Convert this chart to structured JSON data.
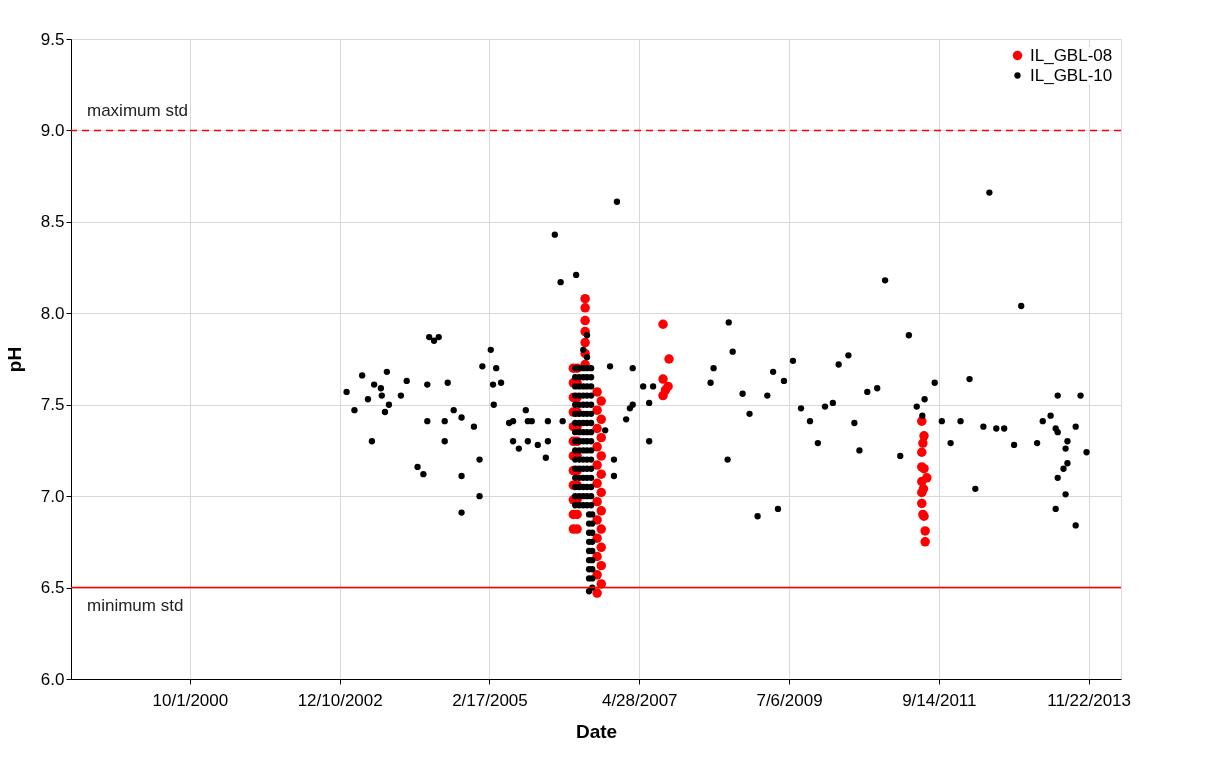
{
  "chart_data": {
    "type": "scatter",
    "xlabel": "Date",
    "ylabel": "pH",
    "xlim": [
      "1999-01-05",
      "2014-05-14"
    ],
    "xticks": [
      {
        "value": "2000-10-01",
        "label": "10/1/2000"
      },
      {
        "value": "2002-12-10",
        "label": "12/10/2002"
      },
      {
        "value": "2005-02-17",
        "label": "2/17/2005"
      },
      {
        "value": "2007-04-28",
        "label": "4/28/2007"
      },
      {
        "value": "2009-07-06",
        "label": "7/6/2009"
      },
      {
        "value": "2011-09-14",
        "label": "9/14/2011"
      },
      {
        "value": "2013-11-22",
        "label": "11/22/2013"
      }
    ],
    "ylim": [
      6,
      9.5
    ],
    "yticks": [
      {
        "value": 6,
        "label": "6.0"
      },
      6.5,
      {
        "value": 7,
        "label": "7.0"
      },
      7.5,
      {
        "value": 8,
        "label": "8.0"
      },
      8.5,
      {
        "value": 9,
        "label": "9.0"
      },
      9.5
    ],
    "grid": true,
    "legend": "top right",
    "marker": "circle",
    "ref_lines": [
      {
        "axis": "y",
        "value": 9.0,
        "label": "maximum std",
        "color": "#ff0000",
        "line_style": "dashed"
      },
      {
        "axis": "y",
        "value": 6.5,
        "label": "minimum std",
        "color": "#ff0000",
        "line_style": "solid"
      }
    ],
    "series": [
      {
        "name": "IL_GBL-08",
        "color": "#ff0000",
        "x": [
          "2006-05-11",
          "2006-05-11",
          "2006-05-11",
          "2006-05-11",
          "2006-05-11",
          "2006-05-11",
          "2006-05-11",
          "2006-05-11",
          "2006-05-11",
          "2006-05-11",
          "2006-05-11",
          "2006-05-11",
          "2006-05-31",
          "2006-05-31",
          "2006-05-31",
          "2006-05-31",
          "2006-05-31",
          "2006-05-31",
          "2006-05-31",
          "2006-05-31",
          "2006-05-31",
          "2006-05-31",
          "2006-05-31",
          "2006-05-31",
          "2006-07-13",
          "2006-07-13",
          "2006-07-13",
          "2006-07-13",
          "2006-07-13",
          "2006-07-13",
          "2006-07-13",
          "2006-09-15",
          "2006-09-15",
          "2006-09-15",
          "2006-09-15",
          "2006-09-15",
          "2006-09-15",
          "2006-09-15",
          "2006-09-15",
          "2006-09-15",
          "2006-09-15",
          "2006-09-15",
          "2006-09-15",
          "2006-10-07",
          "2006-10-07",
          "2006-10-07",
          "2006-10-07",
          "2006-10-07",
          "2006-10-07",
          "2006-10-07",
          "2006-10-07",
          "2006-10-07",
          "2006-10-07",
          "2006-10-07",
          "2007-09-02",
          "2007-10-04",
          "2007-09-02",
          "2007-09-29",
          "2007-09-02",
          "2007-09-15",
          "2011-06-15",
          "2011-06-27",
          "2011-06-21",
          "2011-06-15",
          "2011-06-15",
          "2011-06-27",
          "2011-07-12",
          "2011-06-15",
          "2011-06-24",
          "2011-06-15",
          "2011-06-15",
          "2011-06-21",
          "2011-06-27",
          "2011-07-03",
          "2011-07-03"
        ],
        "values": [
          6.82,
          6.9,
          6.98,
          7.06,
          7.14,
          7.22,
          7.3,
          7.38,
          7.46,
          7.54,
          7.62,
          7.7,
          6.82,
          6.9,
          6.98,
          7.06,
          7.14,
          7.22,
          7.3,
          7.38,
          7.46,
          7.54,
          7.62,
          7.7,
          7.72,
          7.78,
          7.84,
          7.9,
          7.96,
          8.03,
          8.08,
          6.47,
          6.57,
          6.67,
          6.77,
          6.87,
          6.97,
          7.07,
          7.17,
          7.27,
          7.37,
          7.47,
          7.57,
          6.52,
          6.62,
          6.72,
          6.82,
          6.92,
          7.02,
          7.12,
          7.22,
          7.32,
          7.42,
          7.52,
          7.94,
          7.75,
          7.64,
          7.6,
          7.55,
          7.58,
          7.41,
          7.33,
          7.29,
          7.24,
          7.16,
          7.15,
          7.1,
          7.08,
          7.04,
          7.02,
          6.96,
          6.9,
          6.89,
          6.81,
          6.75
        ]
      },
      {
        "name": "IL_GBL-10",
        "color": "#000000",
        "x": [
          "2003-01-16",
          "2003-02-27",
          "2003-04-09",
          "2003-05-10",
          "2003-05-31",
          "2003-06-12",
          "2003-07-18",
          "2003-07-23",
          "2003-08-09",
          "2003-08-19",
          "2003-08-30",
          "2003-11-02",
          "2003-12-03",
          "2004-01-30",
          "2004-03-01",
          "2004-03-22",
          "2004-03-22",
          "2004-04-01",
          "2004-04-27",
          "2004-05-22",
          "2004-06-23",
          "2004-06-23",
          "2004-07-09",
          "2004-08-10",
          "2004-09-21",
          "2004-09-21",
          "2004-09-21",
          "2004-11-26",
          "2004-12-26",
          "2004-12-26",
          "2005-01-10",
          "2005-02-24",
          "2005-03-08",
          "2005-03-12",
          "2005-03-25",
          "2005-04-20",
          "2005-06-02",
          "2005-06-23",
          "2005-06-23",
          "2005-07-24",
          "2005-08-30",
          "2005-09-10",
          "2005-09-10",
          "2005-10-01",
          "2005-11-02",
          "2005-12-15",
          "2005-12-26",
          "2005-12-26",
          "2006-02-01",
          "2006-03-04",
          "2006-03-15",
          "2006-05-26",
          "2006-05-21",
          "2006-05-21",
          "2006-05-21",
          "2006-05-21",
          "2006-05-21",
          "2006-05-21",
          "2006-05-21",
          "2006-05-21",
          "2006-05-21",
          "2006-05-21",
          "2006-05-21",
          "2006-05-21",
          "2006-05-21",
          "2006-05-21",
          "2006-05-21",
          "2006-05-21",
          "2006-06-12",
          "2006-06-12",
          "2006-06-12",
          "2006-06-12",
          "2006-06-12",
          "2006-06-12",
          "2006-06-12",
          "2006-06-12",
          "2006-06-12",
          "2006-06-12",
          "2006-06-12",
          "2006-06-12",
          "2006-06-12",
          "2006-06-12",
          "2006-06-12",
          "2006-06-12",
          "2006-07-03",
          "2006-07-03",
          "2006-07-03",
          "2006-07-03",
          "2006-07-03",
          "2006-07-03",
          "2006-07-03",
          "2006-07-03",
          "2006-07-03",
          "2006-07-03",
          "2006-07-03",
          "2006-07-03",
          "2006-07-03",
          "2006-07-03",
          "2006-07-03",
          "2006-07-03",
          "2006-07-23",
          "2006-07-23",
          "2006-07-23",
          "2006-07-23",
          "2006-07-23",
          "2006-07-23",
          "2006-07-23",
          "2006-07-23",
          "2006-07-23",
          "2006-07-23",
          "2006-07-23",
          "2006-07-23",
          "2006-07-23",
          "2006-07-23",
          "2006-07-23",
          "2006-07-23",
          "2006-08-14",
          "2006-08-14",
          "2006-08-14",
          "2006-08-14",
          "2006-08-14",
          "2006-08-14",
          "2006-08-14",
          "2006-08-14",
          "2006-08-14",
          "2006-08-14",
          "2006-08-14",
          "2006-08-14",
          "2006-08-14",
          "2006-08-14",
          "2006-08-14",
          "2006-08-14",
          "2006-08-03",
          "2006-08-03",
          "2006-08-03",
          "2006-08-03",
          "2006-08-03",
          "2006-08-03",
          "2006-08-03",
          "2006-08-03",
          "2006-08-03",
          "2006-08-20",
          "2006-08-20",
          "2006-08-20",
          "2006-08-20",
          "2006-08-20",
          "2006-08-20",
          "2006-08-20",
          "2006-08-20",
          "2006-08-20",
          "2006-07-23",
          "2006-07-23",
          "2006-07-03",
          "2006-10-28",
          "2006-11-23",
          "2006-12-14",
          "2006-12-14",
          "2006-12-30",
          "2007-02-17",
          "2007-03-09",
          "2007-03-24",
          "2007-03-24",
          "2007-05-19",
          "2007-06-20",
          "2007-06-20",
          "2007-07-11",
          "2008-05-13",
          "2008-05-29",
          "2008-08-12",
          "2008-08-18",
          "2008-09-08",
          "2008-10-31",
          "2008-12-07",
          "2009-01-19",
          "2009-03-12",
          "2009-04-12",
          "2009-05-08",
          "2009-06-09",
          "2009-07-27",
          "2009-09-08",
          "2009-10-26",
          "2009-12-07",
          "2010-01-14",
          "2010-02-25",
          "2010-03-28",
          "2010-05-19",
          "2010-06-20",
          "2010-07-17",
          "2010-08-28",
          "2010-10-20",
          "2010-12-01",
          "2011-02-20",
          "2011-04-07",
          "2011-05-19",
          "2011-06-18",
          "2011-06-30",
          "2011-08-23",
          "2011-09-30",
          "2011-11-16",
          "2012-01-08",
          "2012-02-25",
          "2012-03-27",
          "2012-05-09",
          "2012-06-10",
          "2012-07-17",
          "2012-08-28",
          "2012-10-20",
          "2012-11-27",
          "2013-02-20",
          "2013-03-22",
          "2013-05-03",
          "2013-05-30",
          "2013-06-10",
          "2013-06-10",
          "2013-07-11",
          "2013-07-22",
          "2013-07-22",
          "2013-08-01",
          "2013-08-01",
          "2013-06-10",
          "2013-05-30",
          "2013-09-14",
          "2013-09-14",
          "2013-10-10",
          "2013-11-11"
        ],
        "values": [
          7.57,
          7.47,
          7.66,
          7.53,
          7.3,
          7.61,
          7.59,
          7.55,
          7.46,
          7.68,
          7.5,
          7.55,
          7.63,
          7.16,
          7.12,
          7.41,
          7.61,
          7.87,
          7.85,
          7.87,
          7.41,
          7.3,
          7.62,
          7.47,
          7.43,
          7.11,
          6.91,
          7.38,
          7.2,
          7.0,
          7.71,
          7.8,
          7.61,
          7.5,
          7.7,
          7.62,
          7.4,
          7.41,
          7.3,
          7.26,
          7.47,
          7.41,
          7.3,
          7.41,
          7.28,
          7.21,
          7.3,
          7.41,
          8.43,
          8.17,
          7.41,
          8.21,
          6.95,
          7.0,
          7.05,
          7.1,
          7.15,
          7.2,
          7.25,
          7.3,
          7.35,
          7.4,
          7.45,
          7.5,
          7.55,
          7.6,
          7.65,
          7.7,
          6.95,
          7.0,
          7.05,
          7.1,
          7.15,
          7.2,
          7.25,
          7.3,
          7.35,
          7.4,
          7.45,
          7.5,
          7.55,
          7.6,
          7.65,
          7.7,
          6.95,
          7.0,
          7.05,
          7.1,
          7.15,
          7.2,
          7.25,
          7.3,
          7.35,
          7.4,
          7.45,
          7.5,
          7.55,
          7.6,
          7.65,
          7.7,
          6.95,
          7.0,
          7.05,
          7.1,
          7.15,
          7.2,
          7.25,
          7.3,
          7.35,
          7.4,
          7.45,
          7.5,
          7.55,
          7.6,
          7.65,
          7.7,
          6.95,
          7.0,
          7.05,
          7.1,
          7.15,
          7.2,
          7.25,
          7.3,
          7.35,
          7.4,
          7.45,
          7.5,
          7.55,
          7.6,
          7.65,
          7.7,
          6.48,
          6.55,
          6.6,
          6.65,
          6.7,
          6.75,
          6.8,
          6.85,
          6.9,
          6.5,
          6.55,
          6.6,
          6.65,
          6.7,
          6.75,
          6.8,
          6.85,
          6.9,
          7.76,
          7.88,
          7.8,
          7.36,
          7.71,
          7.2,
          7.11,
          8.61,
          7.42,
          7.48,
          7.5,
          7.7,
          7.6,
          7.51,
          7.3,
          7.6,
          7.62,
          7.7,
          7.2,
          7.95,
          7.79,
          7.56,
          7.45,
          6.89,
          7.55,
          7.68,
          6.93,
          7.63,
          7.74,
          7.48,
          7.41,
          7.29,
          7.49,
          7.51,
          7.72,
          7.77,
          7.4,
          7.25,
          7.57,
          7.59,
          8.18,
          7.22,
          7.88,
          7.49,
          7.44,
          7.53,
          7.62,
          7.41,
          7.29,
          7.41,
          7.64,
          7.04,
          7.38,
          8.66,
          7.37,
          7.37,
          7.28,
          8.04,
          7.29,
          7.41,
          7.44,
          7.37,
          7.55,
          7.35,
          7.15,
          7.26,
          7.01,
          7.3,
          7.18,
          7.1,
          6.93,
          7.38,
          6.84,
          7.55,
          7.24
        ]
      }
    ]
  }
}
